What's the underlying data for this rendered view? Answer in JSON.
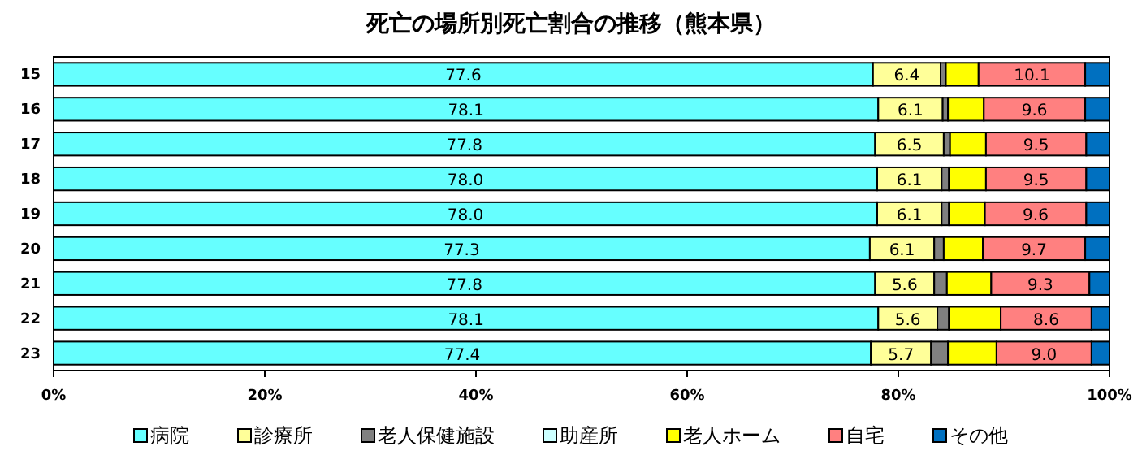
{
  "chart_data": {
    "type": "bar",
    "orientation": "horizontal",
    "stacked": true,
    "title": "死亡の場所別死亡割合の推移（熊本県）",
    "categories": [
      "15",
      "16",
      "17",
      "18",
      "19",
      "20",
      "21",
      "22",
      "23"
    ],
    "xlim": [
      0,
      100
    ],
    "xticks": [
      {
        "value": 0,
        "label": "0%"
      },
      {
        "value": 20,
        "label": "20%"
      },
      {
        "value": 40,
        "label": "40%"
      },
      {
        "value": 60,
        "label": "60%"
      },
      {
        "value": 80,
        "label": "80%"
      },
      {
        "value": 100,
        "label": "100%"
      }
    ],
    "legend": "bottom",
    "grid": false,
    "series": [
      {
        "name": "病院",
        "color": "#66ffff",
        "values": [
          77.6,
          78.1,
          77.8,
          78.0,
          78.0,
          77.3,
          77.8,
          78.1,
          77.4
        ],
        "value_labels": [
          "77.6",
          "78.1",
          "77.8",
          "78.0",
          "78.0",
          "77.3",
          "77.8",
          "78.1",
          "77.4"
        ]
      },
      {
        "name": "診療所",
        "color": "#ffff99",
        "values": [
          6.4,
          6.1,
          6.5,
          6.1,
          6.1,
          6.1,
          5.6,
          5.6,
          5.7
        ],
        "value_labels": [
          "6.4",
          "6.1",
          "6.5",
          "6.1",
          "6.1",
          "6.1",
          "5.6",
          "5.6",
          "5.7"
        ]
      },
      {
        "name": "老人保健施設",
        "color": "#808080",
        "values": [
          0.5,
          0.5,
          0.6,
          0.7,
          0.7,
          0.9,
          1.2,
          1.1,
          1.6
        ]
      },
      {
        "name": "助産所",
        "color": "#ccffff",
        "values": [
          0,
          0,
          0,
          0,
          0,
          0,
          0,
          0,
          0
        ]
      },
      {
        "name": "老人ホーム",
        "color": "#ffff00",
        "values": [
          3.1,
          3.4,
          3.4,
          3.5,
          3.4,
          3.7,
          4.2,
          4.9,
          4.6
        ]
      },
      {
        "name": "自宅",
        "color": "#ff8080",
        "values": [
          10.1,
          9.6,
          9.5,
          9.5,
          9.6,
          9.7,
          9.3,
          8.6,
          9.0
        ],
        "value_labels": [
          "10.1",
          "9.6",
          "9.5",
          "9.5",
          "9.6",
          "9.7",
          "9.3",
          "8.6",
          "9.0"
        ]
      },
      {
        "name": "その他",
        "color": "#0070c0",
        "values": [
          2.3,
          2.3,
          2.2,
          2.2,
          2.2,
          2.3,
          1.9,
          1.7,
          1.7
        ]
      }
    ]
  }
}
